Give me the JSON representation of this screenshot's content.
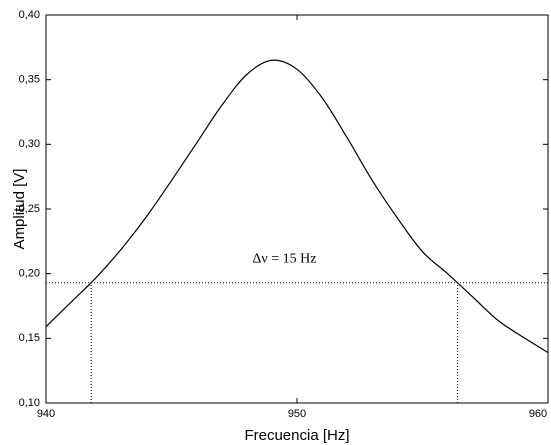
{
  "chart_data": {
    "type": "line",
    "xlabel": "Frecuencia [Hz]",
    "ylabel": "Amplitud [V]",
    "x": [
      940,
      941,
      942,
      943,
      944,
      945,
      946,
      947,
      948,
      949,
      950,
      951,
      952,
      953,
      954,
      955,
      956,
      957,
      958,
      959,
      960
    ],
    "series": [
      {
        "color": "#000000",
        "values": [
          0.159,
          0.178,
          0.197,
          0.219,
          0.244,
          0.272,
          0.301,
          0.33,
          0.354,
          0.365,
          0.358,
          0.336,
          0.305,
          0.272,
          0.243,
          0.217,
          0.2,
          0.182,
          0.164,
          0.151,
          0.139
        ]
      }
    ],
    "xlim": [
      940,
      960
    ],
    "xticks": [
      940,
      950,
      960
    ],
    "ylim": [
      0.1,
      0.4
    ],
    "yticks": [
      {
        "value": 0.1,
        "label": "0,10"
      },
      {
        "value": 0.15,
        "label": "0,15"
      },
      {
        "value": 0.2,
        "label": "0,20"
      },
      {
        "value": 0.25,
        "label": "0,25"
      },
      {
        "value": 0.3,
        "label": "0,30"
      },
      {
        "value": 0.35,
        "label": "0,35"
      },
      {
        "value": 0.4,
        "label": "0,40"
      }
    ],
    "hlines": [
      0.193
    ],
    "vlines": [
      941.8,
      956.4
    ],
    "annotation": "Δν = 15 Hz",
    "annotation_x": 949.5,
    "annotation_y": 0.211
  }
}
